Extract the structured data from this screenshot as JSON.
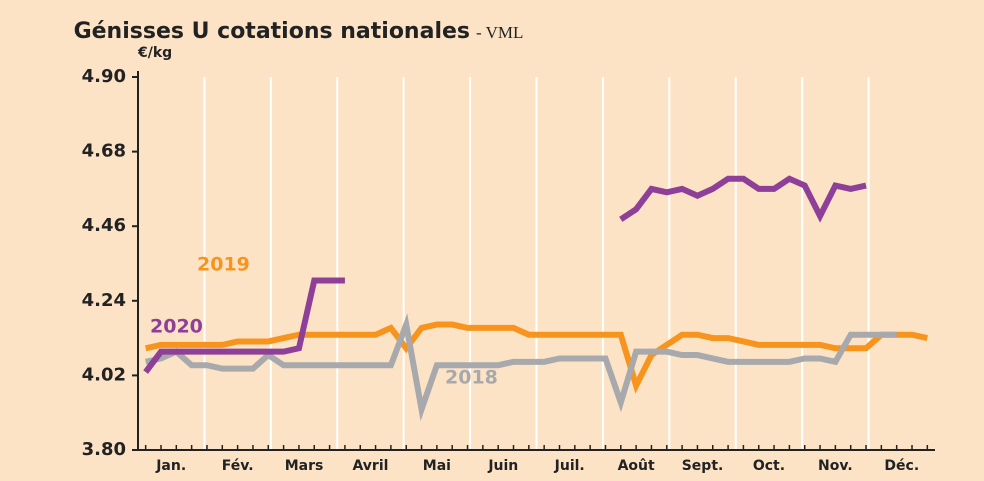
{
  "chart_data": {
    "type": "line",
    "title": "Génisses U cotations nationales",
    "subtitle": "- VML",
    "y_label": "€/kg",
    "x": [
      1,
      2,
      3,
      4,
      5,
      6,
      7,
      8,
      9,
      10,
      11,
      12,
      13,
      14,
      15,
      16,
      17,
      18,
      19,
      20,
      21,
      22,
      23,
      24,
      25,
      26,
      27,
      28,
      29,
      30,
      31,
      32,
      33,
      34,
      35,
      36,
      37,
      38,
      39,
      40,
      41,
      42,
      43,
      44,
      45,
      46,
      47,
      48,
      49,
      50,
      51,
      52
    ],
    "xlim": [
      0.5,
      52.5
    ],
    "month_labels": [
      "Jan.",
      "Fév.",
      "Mars",
      "Avril",
      "Mai",
      "Juin",
      "Juil.",
      "Août",
      "Sept.",
      "Oct.",
      "Nov.",
      "Déc."
    ],
    "ylim": [
      3.8,
      4.9
    ],
    "yticks": [
      {
        "value": 4.9,
        "label": "4.90"
      },
      4.68,
      4.46,
      4.24,
      4.02,
      {
        "value": 3.8,
        "label": "3.80"
      }
    ],
    "grid": true,
    "series": [
      {
        "name": "2019",
        "color": "#f7941d",
        "values": [
          4.1,
          4.11,
          4.11,
          4.11,
          4.11,
          4.11,
          4.12,
          4.12,
          4.12,
          4.13,
          4.14,
          4.14,
          4.14,
          4.14,
          4.14,
          4.14,
          4.16,
          4.1,
          4.16,
          4.17,
          4.17,
          4.16,
          4.16,
          4.16,
          4.16,
          4.14,
          4.14,
          4.14,
          4.14,
          4.14,
          4.14,
          4.14,
          3.99,
          4.08,
          4.11,
          4.14,
          4.14,
          4.13,
          4.13,
          4.12,
          4.11,
          4.11,
          4.11,
          4.11,
          4.11,
          4.1,
          4.1,
          4.1,
          4.14,
          4.14,
          4.14,
          4.13
        ]
      },
      {
        "name": "2018",
        "color": "#a7a9ac",
        "values": [
          4.06,
          4.07,
          4.09,
          4.05,
          4.05,
          4.04,
          4.04,
          4.04,
          4.08,
          4.05,
          4.05,
          4.05,
          4.05,
          4.05,
          4.05,
          4.05,
          4.05,
          4.17,
          3.92,
          4.05,
          4.05,
          4.05,
          4.05,
          4.05,
          4.06,
          4.06,
          4.06,
          4.07,
          4.07,
          4.07,
          4.07,
          3.94,
          4.09,
          4.09,
          4.09,
          4.08,
          4.08,
          4.07,
          4.06,
          4.06,
          4.06,
          4.06,
          4.06,
          4.07,
          4.07,
          4.06,
          4.14,
          4.14,
          4.14,
          4.14,
          null,
          null
        ]
      },
      {
        "name": "2020",
        "color": "#8e3f97",
        "values": [
          4.03,
          4.09,
          4.09,
          4.09,
          4.09,
          4.09,
          4.09,
          4.09,
          4.09,
          4.09,
          4.1,
          4.3,
          4.3,
          4.3,
          null,
          null,
          null,
          null,
          null,
          null,
          null,
          null,
          null,
          null,
          null,
          null,
          null,
          null,
          null,
          null,
          null,
          4.48,
          4.51,
          4.57,
          4.56,
          4.57,
          4.55,
          4.57,
          4.6,
          4.6,
          4.57,
          4.57,
          4.6,
          4.58,
          4.49,
          4.58,
          4.57,
          4.58,
          null,
          null,
          null,
          null
        ]
      }
    ]
  }
}
